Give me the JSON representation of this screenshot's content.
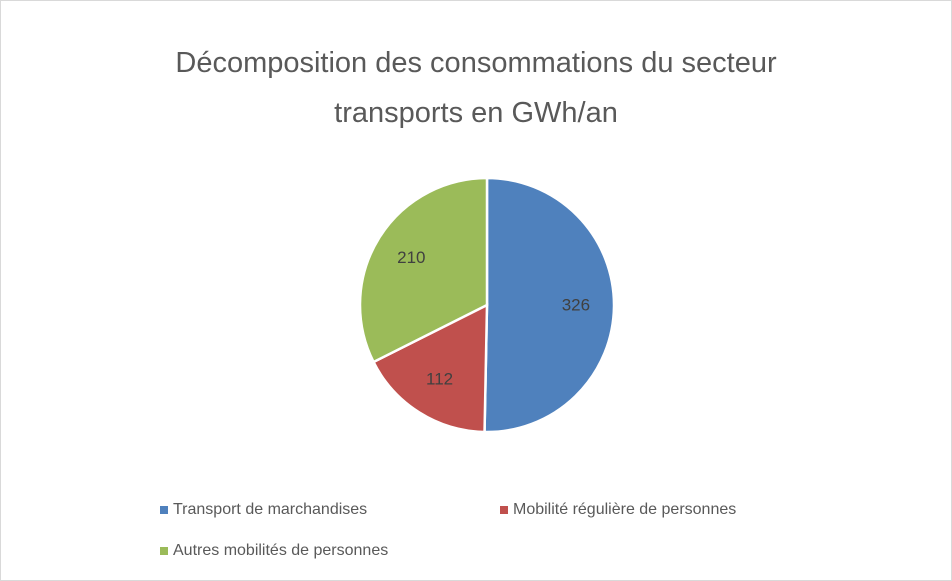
{
  "chart_data": {
    "type": "pie",
    "title": "Décomposition des consommations du secteur transports en GWh/an",
    "categories": [
      "Transport de marchandises",
      "Mobilité régulière de personnes",
      "Autres mobilités de personnes"
    ],
    "values": [
      326,
      112,
      210
    ],
    "colors": [
      "#4f81bd",
      "#c0504d",
      "#9bbb59"
    ],
    "legend": "bottom"
  }
}
